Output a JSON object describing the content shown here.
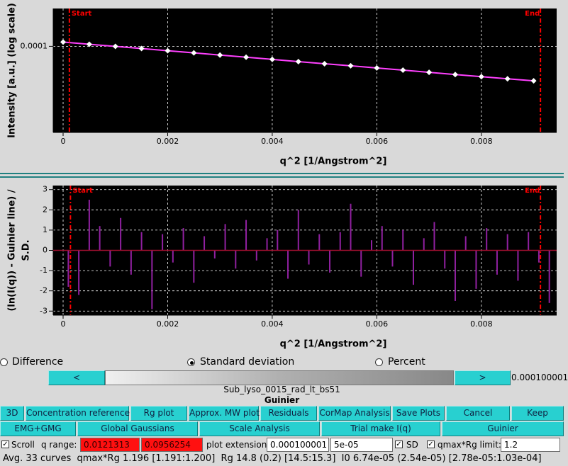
{
  "chart_data": [
    {
      "type": "line",
      "x_label": "q^2 [1/Angstrom^2]",
      "y_label": [
        "Intensity [a.u.] (log scale)"
      ],
      "log_y": true,
      "grid": true,
      "xlim": [
        -0.00019,
        0.00944
      ],
      "ylim": [
        4.5e-05,
        0.000142
      ],
      "xticks": [
        0,
        0.002,
        0.004,
        0.006,
        0.008
      ],
      "yticks": [
        0.0001
      ],
      "x": [
        0,
        0.0005,
        0.001,
        0.0015,
        0.002,
        0.0025,
        0.003,
        0.0035,
        0.004,
        0.0045,
        0.005,
        0.0055,
        0.006,
        0.0065,
        0.007,
        0.0075,
        0.008,
        0.0085,
        0.009
      ],
      "series": [
        {
          "color": "#ff40ff",
          "marker_color": "#ffffff",
          "values": [
            0.000104,
            0.0001019,
            9.99e-05,
            9.8e-05,
            9.6e-05,
            9.41e-05,
            9.22e-05,
            9.04e-05,
            8.86e-05,
            8.68e-05,
            8.51e-05,
            8.35e-05,
            8.18e-05,
            8.02e-05,
            7.86e-05,
            7.7e-05,
            7.55e-05,
            7.4e-05,
            7.26e-05
          ]
        }
      ],
      "range_markers": [
        {
          "label": "Start",
          "x": 0.00012
        },
        {
          "label": "End",
          "x": 0.00913
        }
      ],
      "range_color": "#ff0000"
    },
    {
      "type": "bar",
      "x_label": "q^2 [1/Angstrom^2]",
      "y_label": [
        "(ln(I(q)) - Guinier line) /",
        "S.D."
      ],
      "grid": true,
      "xlim": [
        -0.00019,
        0.00944
      ],
      "ylim": [
        -3.2,
        3.2
      ],
      "xticks": [
        0,
        0.002,
        0.004,
        0.006,
        0.008
      ],
      "yticks": [
        -3,
        -2,
        -1,
        0,
        1,
        2,
        3
      ],
      "x": [
        0.0001,
        0.0003,
        0.0005,
        0.0007,
        0.0009,
        0.0011,
        0.0013,
        0.0015,
        0.0017,
        0.0019,
        0.0021,
        0.0023,
        0.0025,
        0.0027,
        0.0029,
        0.0031,
        0.0033,
        0.0035,
        0.0037,
        0.0039,
        0.0041,
        0.0043,
        0.0045,
        0.0047,
        0.0049,
        0.0051,
        0.0053,
        0.0055,
        0.0057,
        0.0059,
        0.0061,
        0.0063,
        0.0065,
        0.0067,
        0.0069,
        0.0071,
        0.0073,
        0.0075,
        0.0077,
        0.0079,
        0.0081,
        0.0083,
        0.0085,
        0.0087,
        0.0089,
        0.0091,
        0.0093
      ],
      "series": [
        {
          "color": "#9020a0",
          "values": [
            -1.8,
            -2.2,
            2.5,
            1.2,
            -0.8,
            1.6,
            -1.2,
            0.9,
            -2.9,
            0.8,
            -0.6,
            1.1,
            -1.6,
            0.7,
            -0.4,
            1.3,
            -0.9,
            1.5,
            -0.5,
            0.6,
            1.0,
            -1.4,
            2.0,
            -0.7,
            0.8,
            -1.1,
            0.9,
            2.3,
            -1.3,
            0.5,
            1.2,
            -0.8,
            1.0,
            -1.7,
            0.6,
            1.4,
            -0.9,
            -2.5,
            0.7,
            -1.9,
            1.1,
            -1.2,
            0.8,
            -1.5,
            0.9,
            -0.6,
            -2.6
          ]
        }
      ],
      "range_markers": [
        {
          "label": "Start",
          "x": 0.00014
        },
        {
          "label": "End",
          "x": 0.00913
        }
      ],
      "range_color": "#ff0000"
    }
  ],
  "controls": {
    "radios": [
      {
        "label": "Difference",
        "selected": false
      },
      {
        "label": "Standard deviation",
        "selected": true
      },
      {
        "label": "Percent",
        "selected": false
      }
    ],
    "slider": {
      "prev": "<",
      "next": ">",
      "value": "0.000100001"
    },
    "file_name": "Sub_lyso_0015_rad_lt_bs51",
    "panel_title": "Guinier",
    "buttons_row1": [
      "3D",
      "Concentration reference",
      "Rg plot",
      "Approx. MW plot",
      "Residuals",
      "CorMap Analysis",
      "Save Plots",
      "Cancel",
      "Keep"
    ],
    "buttons_row2": [
      "EMG+GMG",
      "Global Gaussians",
      "Scale Analysis",
      "Trial make I(q)",
      "Guinier"
    ],
    "scroll": {
      "label": "Scroll",
      "checked": true
    },
    "q_range_label": "q range:",
    "q_range": [
      "0.0121313",
      "0.0956254"
    ],
    "plot_extension_label": "plot extension:",
    "plot_extension": [
      "0.000100001",
      "5e-05"
    ],
    "sd": {
      "label": "SD",
      "checked": true
    },
    "qmax_rg": {
      "label": "qmax*Rg limit:",
      "checked": true
    },
    "qmax_rg_value": "1.2",
    "status": "Avg. 33 curves  qmax*Rg 1.196 [1.191:1.200]  Rg 14.8 (0.2) [14.5:15.3]  I0 6.74e-05 (2.54e-05) [2.78e-05:1.03e-04]"
  }
}
